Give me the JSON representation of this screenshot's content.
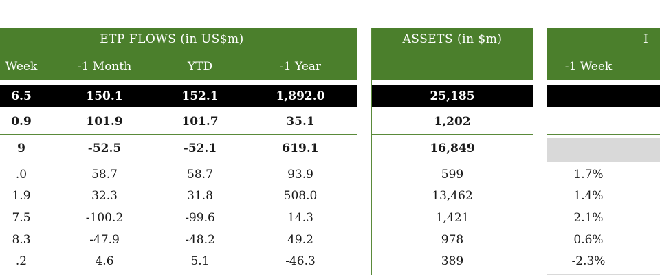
{
  "flows": {
    "title": "ETP FLOWS (in US$m)",
    "columns": [
      "Week",
      "-1 Month",
      "YTD",
      "-1 Year"
    ],
    "rows": [
      [
        "6.5",
        "150.1",
        "152.1",
        "1,892.0"
      ],
      [
        "0.9",
        "101.9",
        "101.7",
        "35.1"
      ],
      [
        "9",
        "-52.5",
        "-52.1",
        "619.1"
      ],
      [
        ".0",
        "58.7",
        "58.7",
        "93.9"
      ],
      [
        "1.9",
        "32.3",
        "31.8",
        "508.0"
      ],
      [
        "7.5",
        "-100.2",
        "-99.6",
        "14.3"
      ],
      [
        "8.3",
        "-47.9",
        "-48.2",
        "49.2"
      ],
      [
        ".2",
        "4.6",
        "5.1",
        "-46.3"
      ]
    ]
  },
  "assets": {
    "title": "ASSETS (in $m)",
    "rows": [
      "25,185",
      "1,202",
      "16,849",
      "599",
      "13,462",
      "1,421",
      "978",
      "389"
    ]
  },
  "perf": {
    "title": "I",
    "columns": [
      "-1 Week"
    ],
    "rows": [
      "",
      "",
      "",
      "1.7%",
      "1.4%",
      "2.1%",
      "0.6%",
      "-2.3%"
    ]
  },
  "colors": {
    "header_green": "#4b7f2c",
    "border_green": "#5a8a3a",
    "black_row": "#000000",
    "gray_row": "#d9d9d9"
  }
}
